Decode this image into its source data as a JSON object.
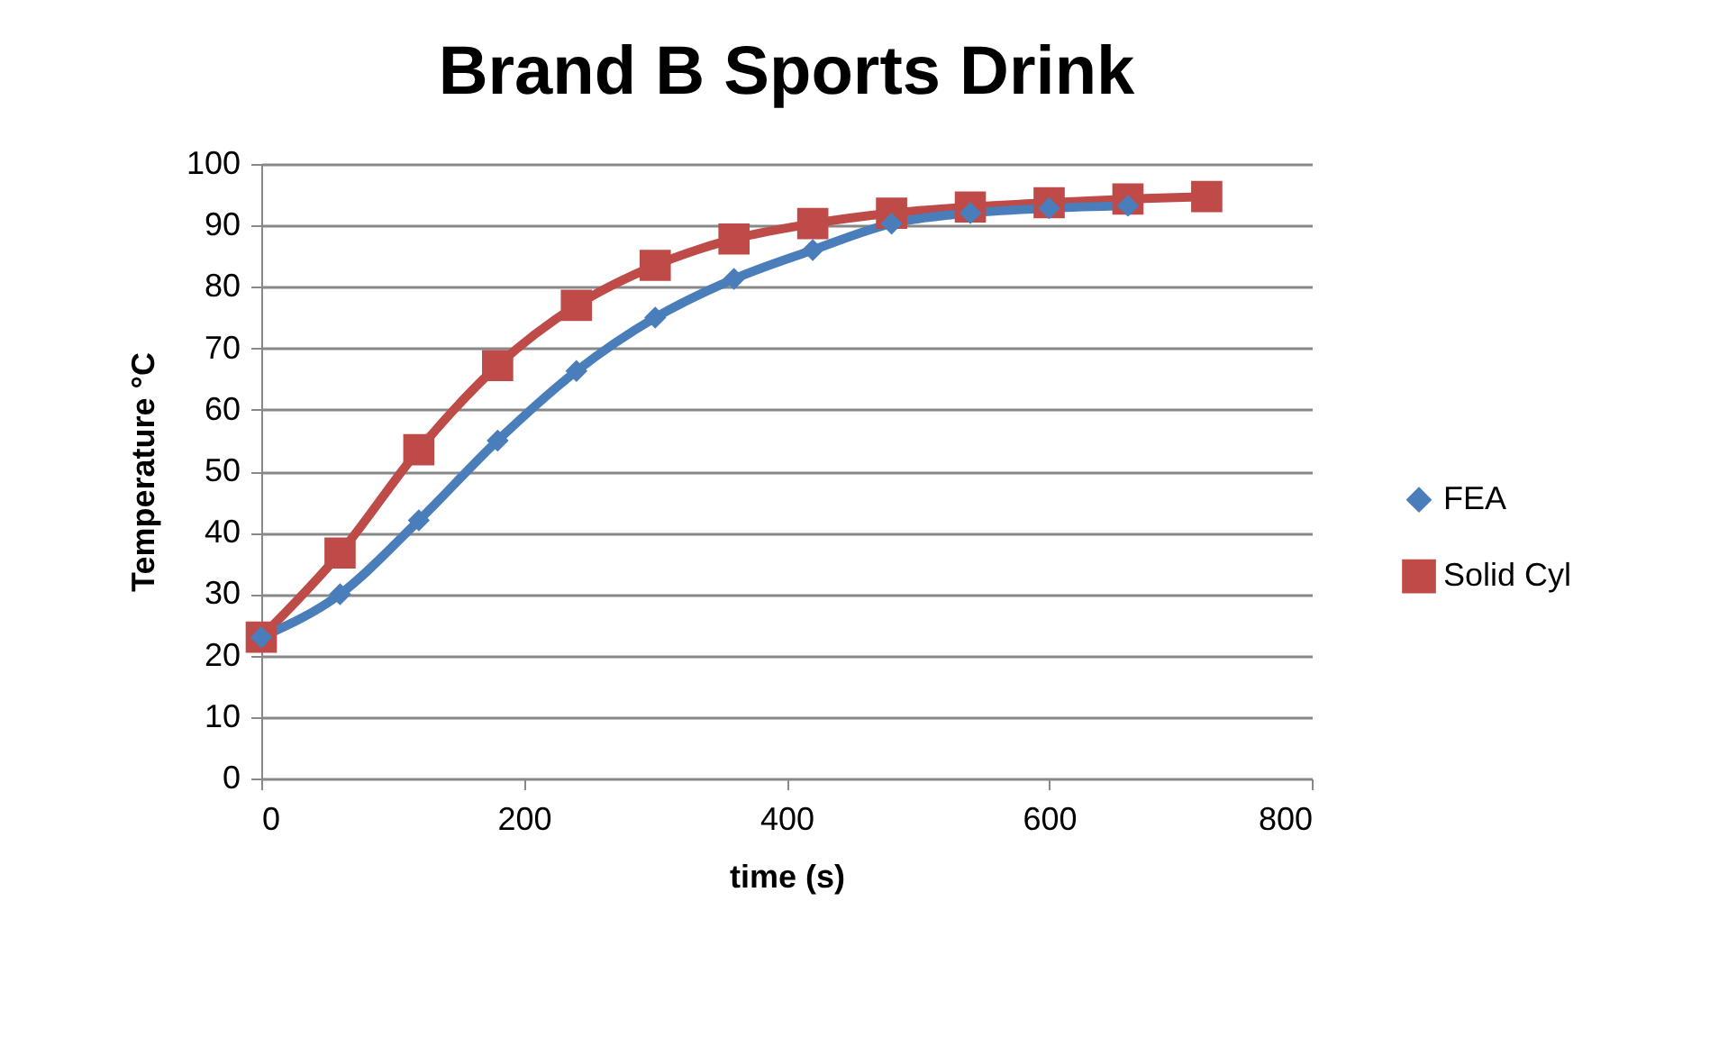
{
  "chart_data": {
    "type": "line",
    "title": "Brand B Sports Drink",
    "xlabel": "time (s)",
    "ylabel": "Temperature °C",
    "xlim": [
      0,
      800
    ],
    "xticks": [
      0,
      200,
      400,
      600,
      800
    ],
    "ylim": [
      0,
      100
    ],
    "yticks": [
      0,
      10,
      20,
      30,
      40,
      50,
      60,
      70,
      80,
      90,
      100
    ],
    "grid": "y",
    "legend": "right",
    "line_style": "solid",
    "series": [
      {
        "name": "FEA",
        "color": "#4a7ebb",
        "marker": "diamond",
        "x": [
          0,
          60,
          120,
          180,
          240,
          300,
          360,
          420,
          480,
          540,
          600,
          660
        ],
        "values": [
          23,
          30,
          42,
          55,
          66.3,
          75,
          81.3,
          86,
          90.3,
          92,
          92.8,
          93.2
        ]
      },
      {
        "name": "Solid Cyl",
        "color": "#be4b48",
        "marker": "square",
        "x": [
          0,
          60,
          120,
          180,
          240,
          300,
          360,
          420,
          480,
          540,
          600,
          660,
          720
        ],
        "values": [
          23,
          36.7,
          53.5,
          67.2,
          77,
          83.5,
          87.8,
          90.3,
          92,
          93,
          93.7,
          94.3,
          94.7
        ]
      }
    ]
  }
}
